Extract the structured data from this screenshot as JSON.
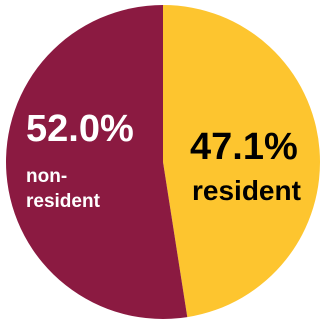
{
  "chart_data": {
    "type": "pie",
    "title": "",
    "slices": [
      {
        "label": "resident",
        "value": 47.1,
        "value_label": "47.1%",
        "color": "#FDC52F"
      },
      {
        "label": "non-resident",
        "value": 52.0,
        "value_label": "52.0%",
        "color": "#8B1A41"
      }
    ],
    "start_angle_deg": 0,
    "direction": "clockwise",
    "legend": "none"
  },
  "labels": {
    "nonresident_pct": "52.0%",
    "nonresident_name_line1": "non-",
    "nonresident_name_line2": "resident",
    "resident_pct": "47.1%",
    "resident_name": "resident"
  }
}
